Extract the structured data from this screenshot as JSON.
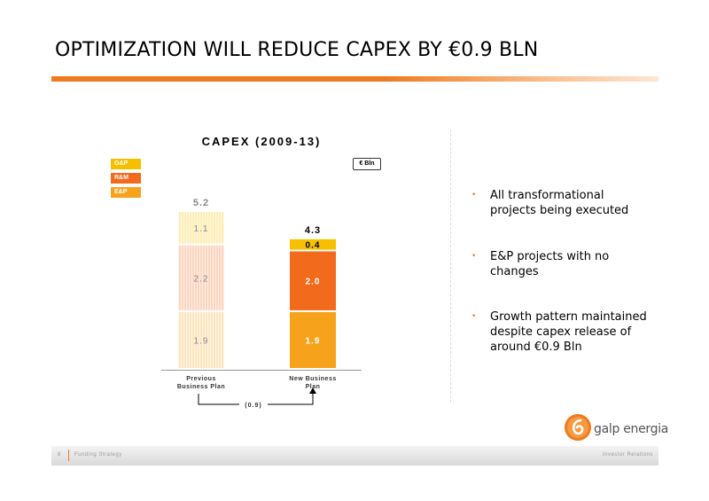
{
  "slide": {
    "title": "OPTIMIZATION WILL REDUCE CAPEX BY €0.9 BLN",
    "unit": "€ Bln"
  },
  "legend": [
    {
      "name": "G&P",
      "color": "#f6c000"
    },
    {
      "name": "R&M",
      "color": "#f26a1b"
    },
    {
      "name": "E&P",
      "color": "#f7a21b"
    }
  ],
  "chart_data": {
    "type": "bar",
    "title": "CAPEX (2009-13)",
    "categories": [
      "Previous Business Plan",
      "New Business Plan"
    ],
    "category_lines": [
      [
        "Previous",
        "Business Plan"
      ],
      [
        "New Business",
        "Plan"
      ]
    ],
    "series": [
      {
        "name": "E&P",
        "values": [
          1.9,
          1.9
        ]
      },
      {
        "name": "R&M",
        "values": [
          2.2,
          2.0
        ]
      },
      {
        "name": "G&P",
        "values": [
          1.1,
          0.4
        ]
      }
    ],
    "totals": [
      "5.2",
      "4.3"
    ],
    "labels": [
      [
        "1.9",
        "2.2",
        "1.1"
      ],
      [
        "1.9",
        "2.0",
        "0.4"
      ]
    ],
    "stacked": true,
    "faded_bar": "Previous Business Plan",
    "reduction_label": "(0.9)",
    "ylim": [
      0,
      5.2
    ]
  },
  "bullets": [
    [
      "All transformational",
      "projects being executed"
    ],
    [
      "E&P projects with no",
      "changes"
    ],
    [
      "Growth pattern maintained",
      "despite capex release of",
      "around €0.9 Bln"
    ]
  ],
  "brand": {
    "name": "galp energia"
  },
  "footer": {
    "page_number": "8",
    "section": "Funding Strategy",
    "department": "Investor Relations"
  }
}
